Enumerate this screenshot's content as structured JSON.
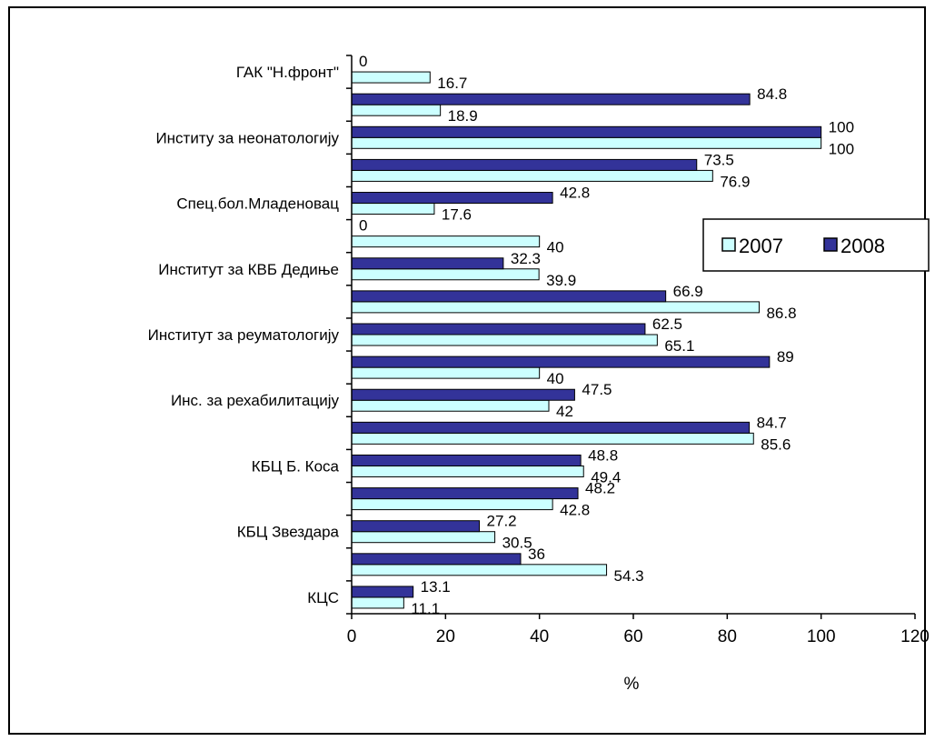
{
  "chart_data": {
    "type": "bar",
    "orientation": "horizontal",
    "xlabel": "%",
    "xlim": [
      0,
      120
    ],
    "xticks": [
      0,
      20,
      40,
      60,
      80,
      100,
      120
    ],
    "grid": false,
    "legend_position": "top-right",
    "categories": [
      "ГАК \"Н.фронт\"",
      "",
      "Институ за неонатологију",
      "",
      "Спец.бол.Младеновац",
      "",
      "Институт за КВБ Дедиње",
      "",
      "Институт за реуматологију",
      "",
      "Инс. за рехабилитацију",
      "",
      "КБЦ Б. Коса",
      "",
      "КБЦ Звездара",
      "",
      "КЦС"
    ],
    "series": [
      {
        "name": "2007",
        "color": "#ccffff",
        "values": [
          16.7,
          18.9,
          100,
          76.9,
          17.6,
          40,
          39.9,
          86.8,
          65.1,
          40,
          42,
          85.6,
          49.4,
          42.8,
          30.5,
          54.3,
          11.1
        ]
      },
      {
        "name": "2008",
        "color": "#333399",
        "values": [
          0,
          84.8,
          100,
          73.5,
          42.8,
          0,
          32.3,
          66.9,
          62.5,
          89,
          47.5,
          84.7,
          48.8,
          48.2,
          27.2,
          36,
          13.1
        ]
      }
    ]
  }
}
